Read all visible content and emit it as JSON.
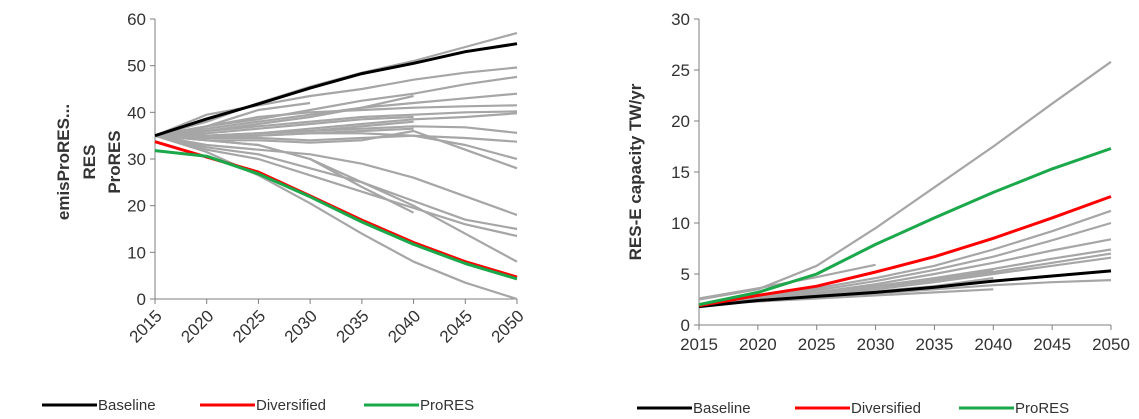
{
  "chart_data": [
    {
      "type": "line",
      "title": "",
      "xlabel": "",
      "ylabel_lines": [
        "ProRES",
        "RES",
        "emisProRES..."
      ],
      "xticks": [
        "2015",
        "2020",
        "2025",
        "2030",
        "2035",
        "2040",
        "2045",
        "2050"
      ],
      "yticks": [
        "0",
        "10",
        "20",
        "30",
        "40",
        "50",
        "60"
      ],
      "ylim": [
        0,
        60
      ],
      "xlim": [
        2015,
        2050
      ],
      "x_tick_rotation": "45deg",
      "grid": false,
      "legend_position": "bottom",
      "series": [
        {
          "name": "Baseline",
          "color": "#000000",
          "x": [
            2015,
            2020,
            2025,
            2030,
            2035,
            2040,
            2045,
            2050
          ],
          "values": [
            35,
            38.6,
            41.8,
            45.2,
            48.3,
            50.5,
            53,
            54.7
          ]
        },
        {
          "name": "Diversified",
          "color": "#ff0000",
          "x": [
            2015,
            2020,
            2025,
            2030,
            2035,
            2040,
            2045,
            2050
          ],
          "values": [
            33.7,
            30.4,
            27.2,
            22.1,
            16.9,
            12.1,
            8,
            4.7
          ]
        },
        {
          "name": "ProRES",
          "color": "#1aa84a",
          "x": [
            2015,
            2020,
            2025,
            2030,
            2035,
            2040,
            2045,
            2050
          ],
          "values": [
            31.8,
            30.6,
            26.8,
            21.9,
            16.5,
            11.7,
            7.6,
            4.3
          ]
        }
      ],
      "other_scenarios_color": "#a6a6a6",
      "other_scenarios": [
        {
          "x": [
            2015,
            2020,
            2025,
            2030,
            2035,
            2040,
            2045,
            2050
          ],
          "values": [
            35,
            38,
            42,
            45.5,
            48.5,
            51,
            54,
            57
          ]
        },
        {
          "x": [
            2015,
            2020,
            2025,
            2030,
            2035,
            2040,
            2045,
            2050
          ],
          "values": [
            35,
            39.5,
            41.5,
            43.5,
            45,
            47,
            48.5,
            49.6
          ]
        },
        {
          "x": [
            2015,
            2020,
            2025,
            2030,
            2035,
            2040,
            2045,
            2050
          ],
          "values": [
            35,
            37,
            38.5,
            40.5,
            42.5,
            44,
            46,
            47.6
          ]
        },
        {
          "x": [
            2015,
            2020,
            2025,
            2030,
            2035,
            2040,
            2045,
            2050
          ],
          "values": [
            35,
            36.5,
            38,
            39.5,
            41,
            42,
            43,
            44
          ]
        },
        {
          "x": [
            2015,
            2020,
            2025,
            2030,
            2035,
            2040,
            2045,
            2050
          ],
          "values": [
            35,
            37,
            39,
            40,
            40.5,
            41,
            41.3,
            41.5
          ]
        },
        {
          "x": [
            2015,
            2020,
            2025,
            2030,
            2035,
            2040,
            2045,
            2050
          ],
          "values": [
            35,
            36,
            37,
            38,
            39,
            39.5,
            40,
            40.2
          ]
        },
        {
          "x": [
            2015,
            2020,
            2025,
            2030,
            2035,
            2040,
            2045,
            2050
          ],
          "values": [
            35,
            35,
            35.5,
            36.5,
            37.5,
            38.5,
            39,
            39.8
          ]
        },
        {
          "x": [
            2015,
            2020,
            2025,
            2030,
            2035,
            2040,
            2045,
            2050
          ],
          "values": [
            35,
            35,
            35.5,
            36,
            36.5,
            37,
            36.8,
            35.6
          ]
        },
        {
          "x": [
            2015,
            2020,
            2025,
            2030,
            2035,
            2040,
            2045,
            2050
          ],
          "values": [
            35,
            35,
            35,
            35.5,
            35.5,
            35,
            34.5,
            33.7
          ]
        },
        {
          "x": [
            2015,
            2020,
            2025,
            2030,
            2035,
            2040,
            2045,
            2050
          ],
          "values": [
            35,
            34.5,
            34.5,
            34,
            34.5,
            35,
            33,
            30
          ]
        },
        {
          "x": [
            2015,
            2020,
            2025,
            2030,
            2035,
            2040,
            2045,
            2050
          ],
          "values": [
            35,
            34,
            34,
            33.5,
            34,
            36,
            32,
            28
          ]
        },
        {
          "x": [
            2015,
            2020,
            2025,
            2030,
            2035,
            2040,
            2045,
            2050
          ],
          "values": [
            35,
            33,
            32,
            31,
            29,
            26,
            22,
            18
          ]
        },
        {
          "x": [
            2015,
            2020,
            2025,
            2030,
            2035,
            2040,
            2045,
            2050
          ],
          "values": [
            35,
            32.5,
            31,
            28,
            25,
            21,
            17,
            15
          ]
        },
        {
          "x": [
            2015,
            2020,
            2025,
            2030,
            2035,
            2040,
            2045,
            2050
          ],
          "values": [
            35,
            32,
            30,
            26.5,
            23,
            19.5,
            16,
            13.5
          ]
        },
        {
          "x": [
            2015,
            2020,
            2025,
            2030,
            2035,
            2040,
            2045,
            2050
          ],
          "values": [
            35,
            34,
            33,
            30,
            25,
            20,
            14,
            8
          ]
        },
        {
          "x": [
            2015,
            2020,
            2025,
            2030,
            2035,
            2040,
            2045,
            2050
          ],
          "values": [
            35,
            31.5,
            26.5,
            20.5,
            14,
            8,
            3.5,
            0
          ]
        },
        {
          "x": [
            2015,
            2020,
            2025,
            2030,
            2035,
            2040
          ],
          "values": [
            35,
            36,
            37.5,
            39,
            41,
            43.5
          ]
        },
        {
          "x": [
            2015,
            2020,
            2025,
            2030,
            2035,
            2040
          ],
          "values": [
            35,
            35.5,
            36.5,
            37.5,
            38.5,
            39
          ]
        },
        {
          "x": [
            2015,
            2020,
            2025,
            2030,
            2035,
            2040
          ],
          "values": [
            35,
            35,
            35.5,
            36,
            37,
            38
          ]
        },
        {
          "x": [
            2015,
            2020,
            2025,
            2030,
            2035,
            2040
          ],
          "values": [
            35,
            34.5,
            35,
            35.5,
            36,
            36.5
          ]
        },
        {
          "x": [
            2015,
            2020,
            2025,
            2030,
            2035,
            2040
          ],
          "values": [
            35,
            34,
            33,
            30,
            24,
            18.5
          ]
        },
        {
          "x": [
            2015,
            2020,
            2025,
            2030
          ],
          "values": [
            35,
            37,
            40.5,
            42
          ]
        }
      ]
    },
    {
      "type": "line",
      "title": "",
      "xlabel": "",
      "ylabel": "RES-E capacity TW/yr",
      "xticks": [
        "2015",
        "2020",
        "2025",
        "2030",
        "2035",
        "2040",
        "2045",
        "2050"
      ],
      "yticks": [
        "0",
        "5",
        "10",
        "15",
        "20",
        "25",
        "30"
      ],
      "ylim": [
        0,
        30
      ],
      "xlim": [
        2015,
        2050
      ],
      "grid": false,
      "legend_position": "bottom",
      "series": [
        {
          "name": "Baseline",
          "color": "#000000",
          "x": [
            2015,
            2020,
            2025,
            2030,
            2035,
            2040,
            2045,
            2050
          ],
          "values": [
            1.8,
            2.4,
            2.8,
            3.2,
            3.7,
            4.3,
            4.8,
            5.3
          ]
        },
        {
          "name": "Diversified",
          "color": "#ff0000",
          "x": [
            2015,
            2020,
            2025,
            2030,
            2035,
            2040,
            2045,
            2050
          ],
          "values": [
            1.9,
            2.9,
            3.8,
            5.2,
            6.7,
            8.5,
            10.5,
            12.6
          ]
        },
        {
          "name": "ProRES",
          "color": "#1aa84a",
          "x": [
            2015,
            2020,
            2025,
            2030,
            2035,
            2040,
            2045,
            2050
          ],
          "values": [
            2.0,
            3.2,
            5.0,
            7.9,
            10.5,
            13.0,
            15.3,
            17.3
          ]
        }
      ],
      "other_scenarios_color": "#a6a6a6",
      "other_scenarios": [
        {
          "x": [
            2015,
            2020,
            2025,
            2030,
            2035,
            2040,
            2045,
            2050
          ],
          "values": [
            2.5,
            3.5,
            5.8,
            9.5,
            13.5,
            17.5,
            21.7,
            25.8
          ]
        },
        {
          "x": [
            2015,
            2020,
            2025,
            2030,
            2035,
            2040,
            2045,
            2050
          ],
          "values": [
            2.0,
            2.8,
            3.6,
            4.6,
            5.8,
            7.4,
            9.2,
            11.2
          ]
        },
        {
          "x": [
            2015,
            2020,
            2025,
            2030,
            2035,
            2040,
            2045,
            2050
          ],
          "values": [
            2.0,
            2.7,
            3.4,
            4.3,
            5.4,
            6.7,
            8.3,
            10.0
          ]
        },
        {
          "x": [
            2015,
            2020,
            2025,
            2030,
            2035,
            2040,
            2045,
            2050
          ],
          "values": [
            2.0,
            2.6,
            3.2,
            4.0,
            5.0,
            6.1,
            7.3,
            8.4
          ]
        },
        {
          "x": [
            2015,
            2020,
            2025,
            2030,
            2035,
            2040,
            2045,
            2050
          ],
          "values": [
            2.0,
            2.5,
            3.1,
            3.8,
            4.6,
            5.5,
            6.5,
            7.4
          ]
        },
        {
          "x": [
            2015,
            2020,
            2025,
            2030,
            2035,
            2040,
            2045,
            2050
          ],
          "values": [
            2.0,
            2.5,
            3.0,
            3.7,
            4.4,
            5.2,
            6.1,
            7.0
          ]
        },
        {
          "x": [
            2015,
            2020,
            2025,
            2030,
            2035,
            2040,
            2045,
            2050
          ],
          "values": [
            2.0,
            2.4,
            2.9,
            3.5,
            4.2,
            5.0,
            5.8,
            6.6
          ]
        },
        {
          "x": [
            2015,
            2020,
            2025,
            2030,
            2035,
            2040,
            2045,
            2050
          ],
          "values": [
            2.0,
            2.4,
            2.7,
            3.1,
            3.5,
            3.9,
            4.2,
            4.4
          ]
        },
        {
          "x": [
            2015,
            2020,
            2025,
            2030,
            2035,
            2040
          ],
          "values": [
            2.0,
            2.5,
            3.0,
            3.8,
            4.5,
            5.3
          ]
        },
        {
          "x": [
            2015,
            2020,
            2025,
            2030,
            2035,
            2040
          ],
          "values": [
            2.0,
            2.4,
            2.8,
            3.3,
            3.8,
            4.6
          ]
        },
        {
          "x": [
            2015,
            2020,
            2025,
            2030,
            2035,
            2040
          ],
          "values": [
            2.0,
            2.3,
            2.6,
            2.9,
            3.2,
            3.5
          ]
        },
        {
          "x": [
            2015,
            2020,
            2025,
            2030
          ],
          "values": [
            2.6,
            3.6,
            4.7,
            5.9
          ]
        }
      ]
    }
  ]
}
